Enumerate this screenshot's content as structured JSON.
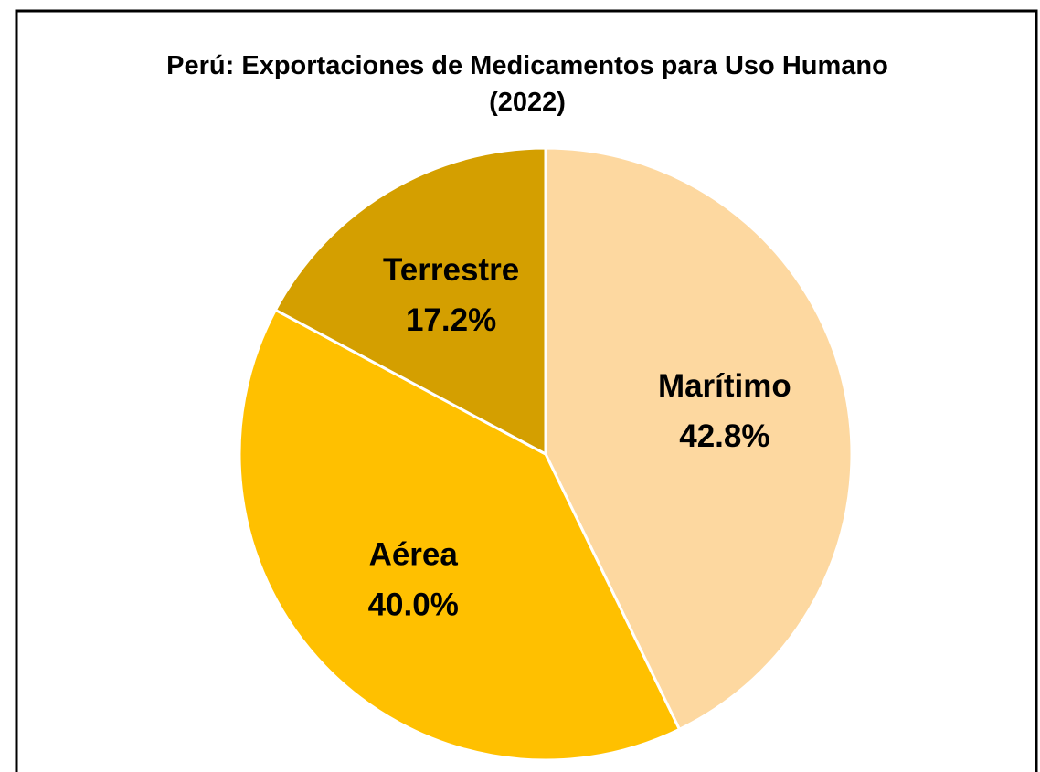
{
  "chart_data": {
    "type": "pie",
    "title": "Perú: Exportaciones de Medicamentos para Uso Humano (2022)",
    "categories": [
      "Marítimo",
      "Aérea",
      "Terrestre"
    ],
    "values": [
      42.8,
      40.0,
      17.2
    ],
    "value_labels": [
      "42.8%",
      "40.0%",
      "17.2%"
    ],
    "colors": [
      "#fdd8a0",
      "#ffc000",
      "#d49f00"
    ]
  }
}
